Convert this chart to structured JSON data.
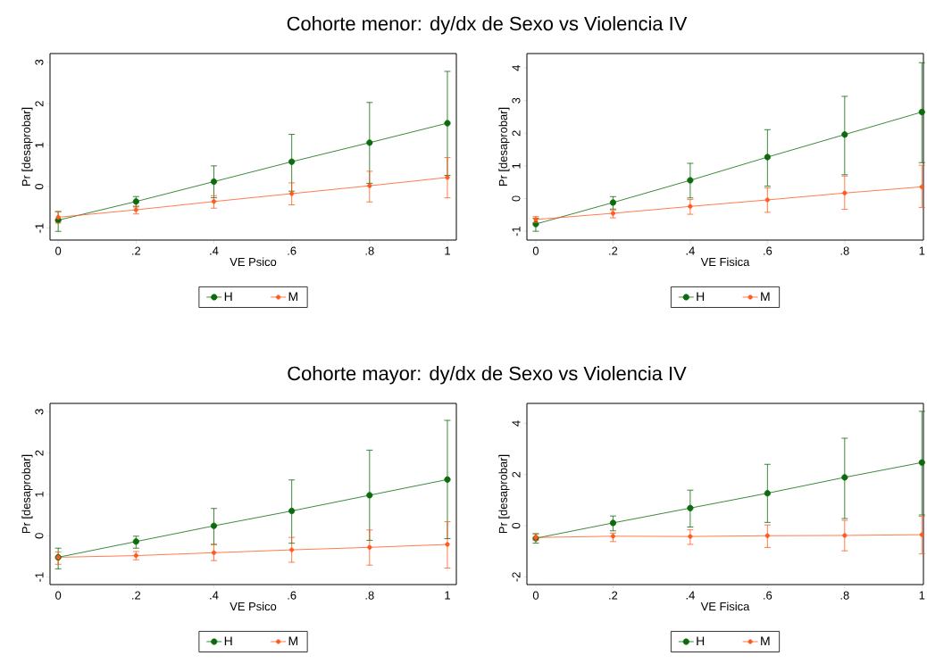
{
  "chart_data": [
    {
      "type": "line",
      "title": "Cohorte menor: dy/dx de Sexo vs Violencia IV",
      "xlabel": "VE Psico",
      "ylabel": "Pr [desaprobar]",
      "x": [
        0,
        0.2,
        0.4,
        0.6,
        0.8,
        1
      ],
      "xlim": [
        -0.021,
        1.023
      ],
      "ylim": [
        -1.29,
        3.21
      ],
      "xticks": [
        0,
        {
          "value": 0.2,
          "label": ".2"
        },
        {
          "value": 0.4,
          "label": ".4"
        },
        {
          "value": 0.6,
          "label": ".6"
        },
        {
          "value": 0.8,
          "label": ".8"
        },
        1
      ],
      "yticks": [
        -1,
        0,
        1,
        2,
        3
      ],
      "marker": "circle",
      "legend": "bottom",
      "grid": false,
      "series": [
        {
          "name": "H",
          "color": "#0c6b0c",
          "values": [
            -0.81,
            -0.36,
            0.12,
            0.6,
            1.06,
            1.53
          ],
          "errors": [
            [
              -1.08,
              -0.6
            ],
            [
              -0.49,
              -0.24
            ],
            [
              -0.27,
              0.5
            ],
            [
              -0.11,
              1.26
            ],
            [
              0.08,
              2.03
            ],
            [
              0.27,
              2.78
            ]
          ]
        },
        {
          "name": "M",
          "color": "#ff5b1f",
          "values": [
            -0.74,
            -0.56,
            -0.36,
            -0.17,
            0.02,
            0.22
          ],
          "errors": [
            [
              -0.88,
              -0.61
            ],
            [
              -0.66,
              -0.47
            ],
            [
              -0.52,
              -0.22
            ],
            [
              -0.44,
              0.09
            ],
            [
              -0.37,
              0.37
            ],
            [
              -0.27,
              0.7
            ]
          ]
        }
      ]
    },
    {
      "type": "line",
      "xlabel": "VE Fisica",
      "ylabel": "Pr [desaprobar]",
      "x": [
        0,
        0.2,
        0.4,
        0.6,
        0.8,
        1
      ],
      "xlim": [
        -0.023,
        1.004
      ],
      "ylim": [
        -1.27,
        4.44
      ],
      "xticks": [
        0,
        {
          "value": 0.2,
          "label": ".2"
        },
        {
          "value": 0.4,
          "label": ".4"
        },
        {
          "value": 0.6,
          "label": ".6"
        },
        {
          "value": 0.8,
          "label": ".8"
        },
        1
      ],
      "yticks": [
        -1,
        0,
        1,
        2,
        3,
        4
      ],
      "marker": "circle",
      "legend": "bottom",
      "grid": false,
      "series": [
        {
          "name": "H",
          "color": "#0c6b0c",
          "values": [
            -0.78,
            -0.12,
            0.56,
            1.27,
            1.96,
            2.65
          ],
          "errors": [
            [
              -1.0,
              -0.6
            ],
            [
              -0.32,
              0.06
            ],
            [
              0.02,
              1.08
            ],
            [
              0.38,
              2.11
            ],
            [
              0.73,
              3.13
            ],
            [
              1.1,
              4.16
            ]
          ]
        },
        {
          "name": "M",
          "color": "#ff5b1f",
          "values": [
            -0.64,
            -0.45,
            -0.24,
            -0.04,
            0.17,
            0.36
          ],
          "errors": [
            [
              -0.74,
              -0.55
            ],
            [
              -0.59,
              -0.35
            ],
            [
              -0.48,
              -0.03
            ],
            [
              -0.42,
              0.33
            ],
            [
              -0.33,
              0.69
            ],
            [
              -0.27,
              1.02
            ]
          ]
        }
      ]
    },
    {
      "type": "line",
      "title": "Cohorte mayor: dy/dx de Sexo vs Violencia IV",
      "xlabel": "VE Psico",
      "ylabel": "Pr [desaprobar]",
      "x": [
        0,
        0.2,
        0.4,
        0.6,
        0.8,
        1
      ],
      "xlim": [
        -0.021,
        1.023
      ],
      "ylim": [
        -1.18,
        3.2
      ],
      "xticks": [
        0,
        {
          "value": 0.2,
          "label": ".2"
        },
        {
          "value": 0.4,
          "label": ".4"
        },
        {
          "value": 0.6,
          "label": ".6"
        },
        {
          "value": 0.8,
          "label": ".8"
        },
        1
      ],
      "yticks": [
        -1,
        0,
        1,
        2,
        3
      ],
      "marker": "circle",
      "legend": "bottom",
      "grid": false,
      "series": [
        {
          "name": "H",
          "color": "#0c6b0c",
          "values": [
            -0.52,
            -0.14,
            0.24,
            0.6,
            0.98,
            1.36
          ],
          "errors": [
            [
              -0.8,
              -0.3
            ],
            [
              -0.3,
              -0.01
            ],
            [
              -0.21,
              0.66
            ],
            [
              -0.18,
              1.35
            ],
            [
              -0.11,
              2.07
            ],
            [
              -0.07,
              2.79
            ]
          ]
        },
        {
          "name": "M",
          "color": "#ff5b1f",
          "values": [
            -0.52,
            -0.48,
            -0.41,
            -0.34,
            -0.28,
            -0.21
          ],
          "errors": [
            [
              -0.69,
              -0.39
            ],
            [
              -0.58,
              -0.38
            ],
            [
              -0.6,
              -0.21
            ],
            [
              -0.64,
              -0.04
            ],
            [
              -0.71,
              0.14
            ],
            [
              -0.78,
              0.34
            ]
          ]
        }
      ]
    },
    {
      "type": "line",
      "xlabel": "VE Fisica",
      "ylabel": "Pr [desaprobar]",
      "x": [
        0,
        0.2,
        0.4,
        0.6,
        0.8,
        1
      ],
      "xlim": [
        -0.023,
        1.004
      ],
      "ylim": [
        -2.3,
        4.78
      ],
      "xticks": [
        0,
        {
          "value": 0.2,
          "label": ".2"
        },
        {
          "value": 0.4,
          "label": ".4"
        },
        {
          "value": 0.6,
          "label": ".6"
        },
        {
          "value": 0.8,
          "label": ".8"
        },
        1
      ],
      "yticks": [
        -2,
        0,
        2,
        4
      ],
      "marker": "circle",
      "legend": "bottom",
      "grid": false,
      "series": [
        {
          "name": "H",
          "color": "#0c6b0c",
          "values": [
            -0.49,
            0.11,
            0.69,
            1.27,
            1.89,
            2.47
          ],
          "errors": [
            [
              -0.68,
              -0.31
            ],
            [
              -0.2,
              0.38
            ],
            [
              -0.05,
              1.39
            ],
            [
              0.13,
              2.4
            ],
            [
              0.28,
              3.42
            ],
            [
              0.42,
              4.47
            ]
          ]
        },
        {
          "name": "M",
          "color": "#ff5b1f",
          "values": [
            -0.46,
            -0.41,
            -0.42,
            -0.39,
            -0.38,
            -0.35
          ],
          "errors": [
            [
              -0.58,
              -0.32
            ],
            [
              -0.62,
              -0.29
            ],
            [
              -0.73,
              -0.16
            ],
            [
              -0.85,
              0.03
            ],
            [
              -0.98,
              0.21
            ],
            [
              -1.1,
              0.37
            ]
          ]
        }
      ]
    }
  ]
}
